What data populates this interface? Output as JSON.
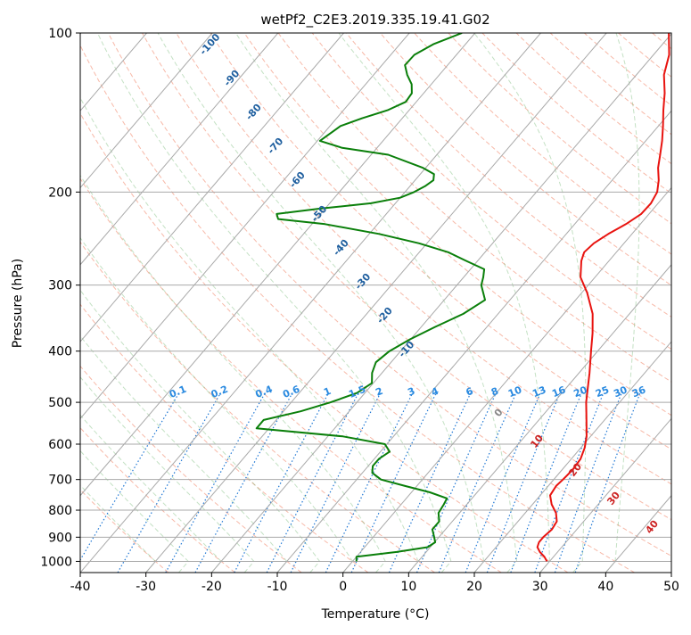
{
  "chart_data": {
    "type": "line",
    "subtype": "skew-t log-p diagram",
    "title": "wetPf2_C2E3.2019.335.19.41.G02",
    "xlabel": "Temperature (°C)",
    "ylabel": "Pressure (hPa)",
    "xlim": [
      -40,
      50
    ],
    "ylim": [
      1050,
      100
    ],
    "y_scale": "log",
    "x_ticks": [
      -40,
      -30,
      -20,
      -10,
      0,
      10,
      20,
      30,
      40,
      50
    ],
    "y_ticks": [
      100,
      200,
      300,
      400,
      500,
      600,
      700,
      800,
      900,
      1000
    ],
    "grid": true,
    "series": [
      {
        "key": "temperature",
        "color": "#e8130f",
        "points": [
          [
            1000,
            29.6
          ],
          [
            980,
            28.6
          ],
          [
            960,
            27.3
          ],
          [
            940,
            26.3
          ],
          [
            920,
            25.9
          ],
          [
            900,
            25.9
          ],
          [
            870,
            26.2
          ],
          [
            840,
            25.9
          ],
          [
            810,
            24.7
          ],
          [
            780,
            22.9
          ],
          [
            750,
            21.5
          ],
          [
            720,
            21.2
          ],
          [
            700,
            21.4
          ],
          [
            670,
            21.6
          ],
          [
            640,
            21.4
          ],
          [
            610,
            20.6
          ],
          [
            580,
            19.4
          ],
          [
            550,
            17.8
          ],
          [
            520,
            16.1
          ],
          [
            500,
            14.9
          ],
          [
            470,
            13.3
          ],
          [
            440,
            11.6
          ],
          [
            400,
            9.0
          ],
          [
            370,
            6.9
          ],
          [
            340,
            4.4
          ],
          [
            310,
            0.8
          ],
          [
            290,
            -2.2
          ],
          [
            270,
            -4.2
          ],
          [
            260,
            -4.9
          ],
          [
            250,
            -4.6
          ],
          [
            240,
            -3.6
          ],
          [
            230,
            -2.2
          ],
          [
            220,
            -1.2
          ],
          [
            210,
            -1.1
          ],
          [
            200,
            -1.6
          ],
          [
            190,
            -2.9
          ],
          [
            180,
            -4.6
          ],
          [
            170,
            -6.0
          ],
          [
            160,
            -7.5
          ],
          [
            150,
            -9.3
          ],
          [
            140,
            -11.3
          ],
          [
            130,
            -13.3
          ],
          [
            120,
            -15.8
          ],
          [
            110,
            -17.6
          ],
          [
            100,
            -20.5
          ]
        ]
      },
      {
        "key": "dewpoint",
        "color": "#0a7f0a",
        "points": [
          [
            1000,
            0.6
          ],
          [
            980,
            0.0
          ],
          [
            960,
            5.5
          ],
          [
            940,
            9.6
          ],
          [
            920,
            10.1
          ],
          [
            900,
            9.3
          ],
          [
            870,
            8.0
          ],
          [
            840,
            8.0
          ],
          [
            810,
            6.8
          ],
          [
            780,
            6.5
          ],
          [
            760,
            6.2
          ],
          [
            740,
            2.8
          ],
          [
            720,
            -1.8
          ],
          [
            700,
            -6.3
          ],
          [
            680,
            -8.5
          ],
          [
            660,
            -9.3
          ],
          [
            640,
            -9.3
          ],
          [
            620,
            -8.6
          ],
          [
            600,
            -10.3
          ],
          [
            580,
            -17.7
          ],
          [
            560,
            -31.9
          ],
          [
            540,
            -31.9
          ],
          [
            520,
            -27.4
          ],
          [
            500,
            -24.0
          ],
          [
            480,
            -21.2
          ],
          [
            460,
            -20.2
          ],
          [
            440,
            -21.5
          ],
          [
            420,
            -22.3
          ],
          [
            400,
            -21.7
          ],
          [
            380,
            -20.1
          ],
          [
            360,
            -17.9
          ],
          [
            340,
            -15.3
          ],
          [
            320,
            -13.8
          ],
          [
            300,
            -16.3
          ],
          [
            290,
            -17.0
          ],
          [
            280,
            -17.9
          ],
          [
            270,
            -21.7
          ],
          [
            260,
            -25.6
          ],
          [
            250,
            -31.2
          ],
          [
            240,
            -38.5
          ],
          [
            230,
            -48.0
          ],
          [
            225,
            -55.8
          ],
          [
            220,
            -56.7
          ],
          [
            215,
            -50.9
          ],
          [
            210,
            -43.7
          ],
          [
            205,
            -40.0
          ],
          [
            200,
            -38.6
          ],
          [
            195,
            -37.7
          ],
          [
            190,
            -37.2
          ],
          [
            185,
            -37.9
          ],
          [
            180,
            -40.4
          ],
          [
            170,
            -47.4
          ],
          [
            165,
            -55.3
          ],
          [
            160,
            -59.6
          ],
          [
            150,
            -58.4
          ],
          [
            145,
            -56.1
          ],
          [
            140,
            -53.3
          ],
          [
            135,
            -51.6
          ],
          [
            130,
            -51.8
          ],
          [
            125,
            -53.0
          ],
          [
            120,
            -54.9
          ],
          [
            115,
            -56.5
          ],
          [
            110,
            -56.4
          ],
          [
            105,
            -54.9
          ],
          [
            100,
            -52.0
          ]
        ]
      }
    ],
    "dry_adiabats_label": {
      "values": [
        -100,
        -90,
        -80,
        -70,
        -60,
        -50,
        -40,
        -30,
        -20,
        -10
      ]
    },
    "moist_adiabats_label": {
      "values": [
        0,
        10,
        20,
        30,
        40
      ]
    },
    "mixing_ratio_labels": [
      "0.1",
      "0.2",
      "0.4",
      "0.6",
      "1",
      "1.5",
      "2",
      "3",
      "4",
      "6",
      "8",
      "10",
      "13",
      "16",
      "20",
      "25",
      "30",
      "36"
    ],
    "mixing_ratio_values": [
      0.1,
      0.2,
      0.4,
      0.6,
      1,
      1.5,
      2,
      3,
      4,
      6,
      8,
      10,
      13,
      16,
      20,
      25,
      30,
      36
    ],
    "colors": {
      "temperature": "#e8130f",
      "dewpoint": "#0a7f0a",
      "isotherm": "#a9a9a9",
      "isobar": "#a9a9a9",
      "dry_adiabat": "#f08060",
      "moist_adiabat": "#55aa55",
      "mixing_ratio": "#1f77d4",
      "dry_label": "#1f5f9f",
      "moist_label": "#cc2222",
      "mix_label": "#2a8ae0"
    }
  }
}
